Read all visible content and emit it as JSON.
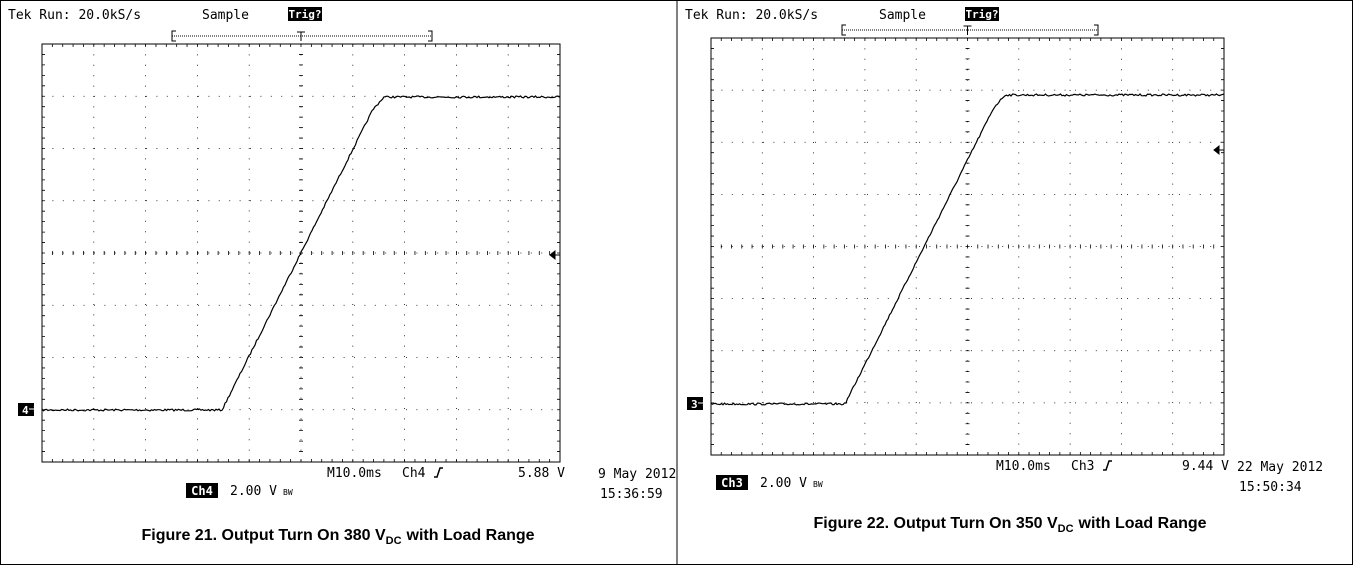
{
  "figures": [
    {
      "header": {
        "tek": "Tek Run: 20.0kS/s",
        "mode": "Sample",
        "trig": "Trig?"
      },
      "ground_marker": "4",
      "timebase": "M10.0ms",
      "trigger_channel": "Ch4",
      "trigger_level": "5.88 V",
      "date": "9 May 2012",
      "time": "15:36:59",
      "channel": "Ch4",
      "scale": "2.00 V",
      "bw": "BW",
      "caption": {
        "main": "Figure 21. Output Turn On 380 V",
        "sub": "DC",
        "rest": "with Load Range"
      }
    },
    {
      "header": {
        "tek": "Tek Run: 20.0kS/s",
        "mode": "Sample",
        "trig": "Trig?"
      },
      "ground_marker": "3",
      "timebase": "M10.0ms",
      "trigger_channel": "Ch3",
      "trigger_level": "9.44 V",
      "date": "22 May 2012",
      "time": "15:50:34",
      "channel": "Ch3",
      "scale": "2.00 V",
      "bw": "BW",
      "caption": {
        "main": "Figure 22. Output Turn On 350 V",
        "sub": "DC",
        "rest": "with Load Range"
      }
    }
  ]
}
